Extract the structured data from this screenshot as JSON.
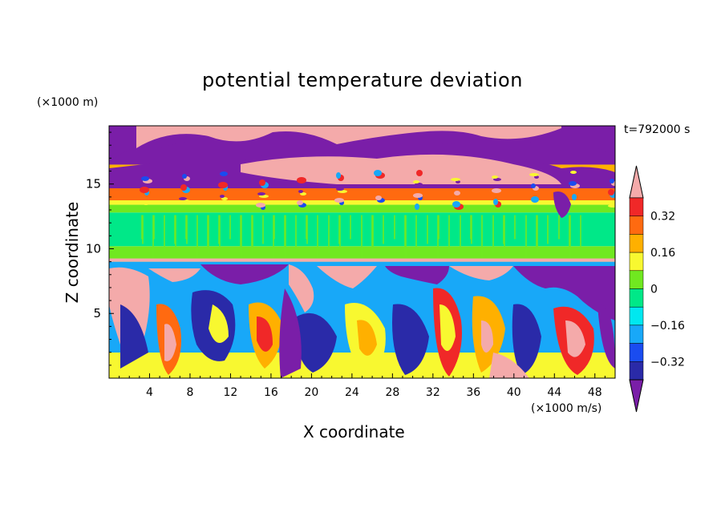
{
  "chart_data": {
    "type": "heatmap",
    "title": "potential temperature deviation",
    "xlabel": "X coordinate",
    "ylabel": "Z coordinate",
    "x_unit_label": "(×1000 m/s)",
    "y_unit_label": "(×1000 m)",
    "time_label": "t=792000 s",
    "xlim": [
      0,
      50
    ],
    "ylim": [
      0,
      19.5
    ],
    "x_ticks": [
      4,
      8,
      12,
      16,
      20,
      24,
      28,
      32,
      36,
      40,
      44,
      48
    ],
    "x_tick_labels": [
      "4",
      "8",
      "12",
      "16",
      "20",
      "24",
      "28",
      "32",
      "36",
      "40",
      "44",
      "48"
    ],
    "y_ticks": [
      5,
      10,
      15
    ],
    "y_tick_labels": [
      "5",
      "10",
      "15"
    ],
    "colorbar": {
      "levels": [
        -0.4,
        -0.32,
        -0.24,
        -0.16,
        -0.08,
        0,
        0.08,
        0.16,
        0.24,
        0.32,
        0.4
      ],
      "labeled_ticks": [
        0.32,
        0.16,
        0,
        -0.16,
        -0.32
      ],
      "labels": [
        "0.32",
        "0.16",
        "0",
        "−0.16",
        "−0.32"
      ],
      "colors": [
        "#7a1ea8",
        "#2a2aa8",
        "#1a4cf0",
        "#18a8f8",
        "#00e8f0",
        "#00e888",
        "#70e820",
        "#f8f830",
        "#ffb000",
        "#ff6a10",
        "#f02828",
        "#f4aaaa"
      ],
      "extend": "both"
    },
    "bands": [
      {
        "z_range": [
          16.5,
          19.5
        ],
        "dominant": "above 0.4 / below -0.4 patches",
        "colors": [
          "#f4aaaa",
          "#7a1ea8"
        ]
      },
      {
        "z_range": [
          15.3,
          16.5
        ],
        "dominant": "mixed",
        "colors": [
          "#7a1ea8",
          "#f4aaaa",
          "#18a8f8"
        ]
      },
      {
        "z_range": [
          14.2,
          15.3
        ],
        "dominant": "0.32 to 0.4",
        "colors": [
          "#f02828",
          "#ff6a10"
        ]
      },
      {
        "z_range": [
          13.4,
          14.2
        ],
        "dominant": "0.16 to 0.32",
        "colors": [
          "#ffb000",
          "#f8f830"
        ]
      },
      {
        "z_range": [
          12.8,
          13.4
        ],
        "dominant": "0.08 to 0.16",
        "colors": [
          "#70e820"
        ]
      },
      {
        "z_range": [
          10.2,
          12.8
        ],
        "dominant": "0 to 0.08",
        "colors": [
          "#00e888"
        ]
      },
      {
        "z_range": [
          9.0,
          10.2
        ],
        "dominant": "0.08 to 0.16",
        "colors": [
          "#70e820"
        ]
      },
      {
        "z_range": [
          0,
          9.0
        ],
        "dominant": "convective plumes, all levels",
        "colors": [
          "#7a1ea8",
          "#2a2aa8",
          "#18a8f8",
          "#00e8f0",
          "#f8f830",
          "#ff6a10",
          "#f4aaaa"
        ]
      }
    ],
    "grid": false
  }
}
